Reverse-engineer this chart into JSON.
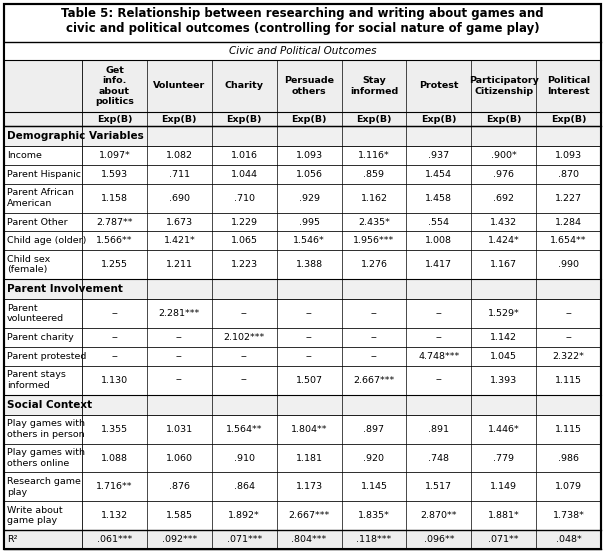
{
  "title_line1": "Table 5: Relationship between researching and writing about games and",
  "title_line2": "civic and political outcomes (controlling for social nature of game play)",
  "subtitle": "Civic and Political Outcomes",
  "col_headers": [
    "Get\ninfo.\nabout\npolitics",
    "Volunteer",
    "Charity",
    "Persuade\nothers",
    "Stay\ninformed",
    "Protest",
    "Participatory\nCitizenship",
    "Political\nInterest"
  ],
  "col_subheaders": [
    "Exp(B)",
    "Exp(B)",
    "Exp(B)",
    "Exp(B)",
    "Exp(B)",
    "Exp(B)",
    "Exp(B)",
    "Exp(B)"
  ],
  "sections": [
    {
      "name": "Demographic Variables",
      "rows": [
        [
          "Income",
          "1.097*",
          "1.082",
          "1.016",
          "1.093",
          "1.116*",
          ".937",
          ".900*",
          "1.093"
        ],
        [
          "Parent Hispanic",
          "1.593",
          ".711",
          "1.044",
          "1.056",
          ".859",
          "1.454",
          ".976",
          ".870"
        ],
        [
          "Parent African\nAmerican",
          "1.158",
          ".690",
          ".710",
          ".929",
          "1.162",
          "1.458",
          ".692",
          "1.227"
        ],
        [
          "Parent Other",
          "2.787**",
          "1.673",
          "1.229",
          ".995",
          "2.435*",
          ".554",
          "1.432",
          "1.284"
        ],
        [
          "Child age (older)",
          "1.566**",
          "1.421*",
          "1.065",
          "1.546*",
          "1.956***",
          "1.008",
          "1.424*",
          "1.654**"
        ],
        [
          "Child sex\n(female)",
          "1.255",
          "1.211",
          "1.223",
          "1.388",
          "1.276",
          "1.417",
          "1.167",
          ".990"
        ]
      ]
    },
    {
      "name": "Parent Involvement",
      "rows": [
        [
          "Parent\nvolunteered",
          "--",
          "2.281***",
          "--",
          "--",
          "--",
          "--",
          "1.529*",
          "--"
        ],
        [
          "Parent charity",
          "--",
          "--",
          "2.102***",
          "--",
          "--",
          "--",
          "1.142",
          "--"
        ],
        [
          "Parent protested",
          "--",
          "--",
          "--",
          "--",
          "--",
          "4.748***",
          "1.045",
          "2.322*"
        ],
        [
          "Parent stays\ninformed",
          "1.130",
          "--",
          "--",
          "1.507",
          "2.667***",
          "--",
          "1.393",
          "1.115"
        ]
      ]
    },
    {
      "name": "Social Context",
      "rows": [
        [
          "Play games with\nothers in person",
          "1.355",
          "1.031",
          "1.564**",
          "1.804**",
          ".897",
          ".891",
          "1.446*",
          "1.115"
        ],
        [
          "Play games with\nothers online",
          "1.088",
          "1.060",
          ".910",
          "1.181",
          ".920",
          ".748",
          ".779",
          ".986"
        ],
        [
          "Research game\nplay",
          "1.716**",
          ".876",
          ".864",
          "1.173",
          "1.145",
          "1.517",
          "1.149",
          "1.079"
        ],
        [
          "Write about\ngame play",
          "1.132",
          "1.585",
          "1.892*",
          "2.667***",
          "1.835*",
          "2.870**",
          "1.881*",
          "1.738*"
        ]
      ]
    }
  ],
  "footer_row": [
    "R²",
    ".061***",
    ".092***",
    ".071***",
    ".804***",
    ".118***",
    ".096**",
    ".071**",
    ".048*"
  ],
  "title_fontsize": 8.5,
  "subtitle_fontsize": 7.5,
  "header_fontsize": 6.8,
  "data_fontsize": 6.8,
  "section_fontsize": 7.5,
  "footer_fontsize": 6.8
}
